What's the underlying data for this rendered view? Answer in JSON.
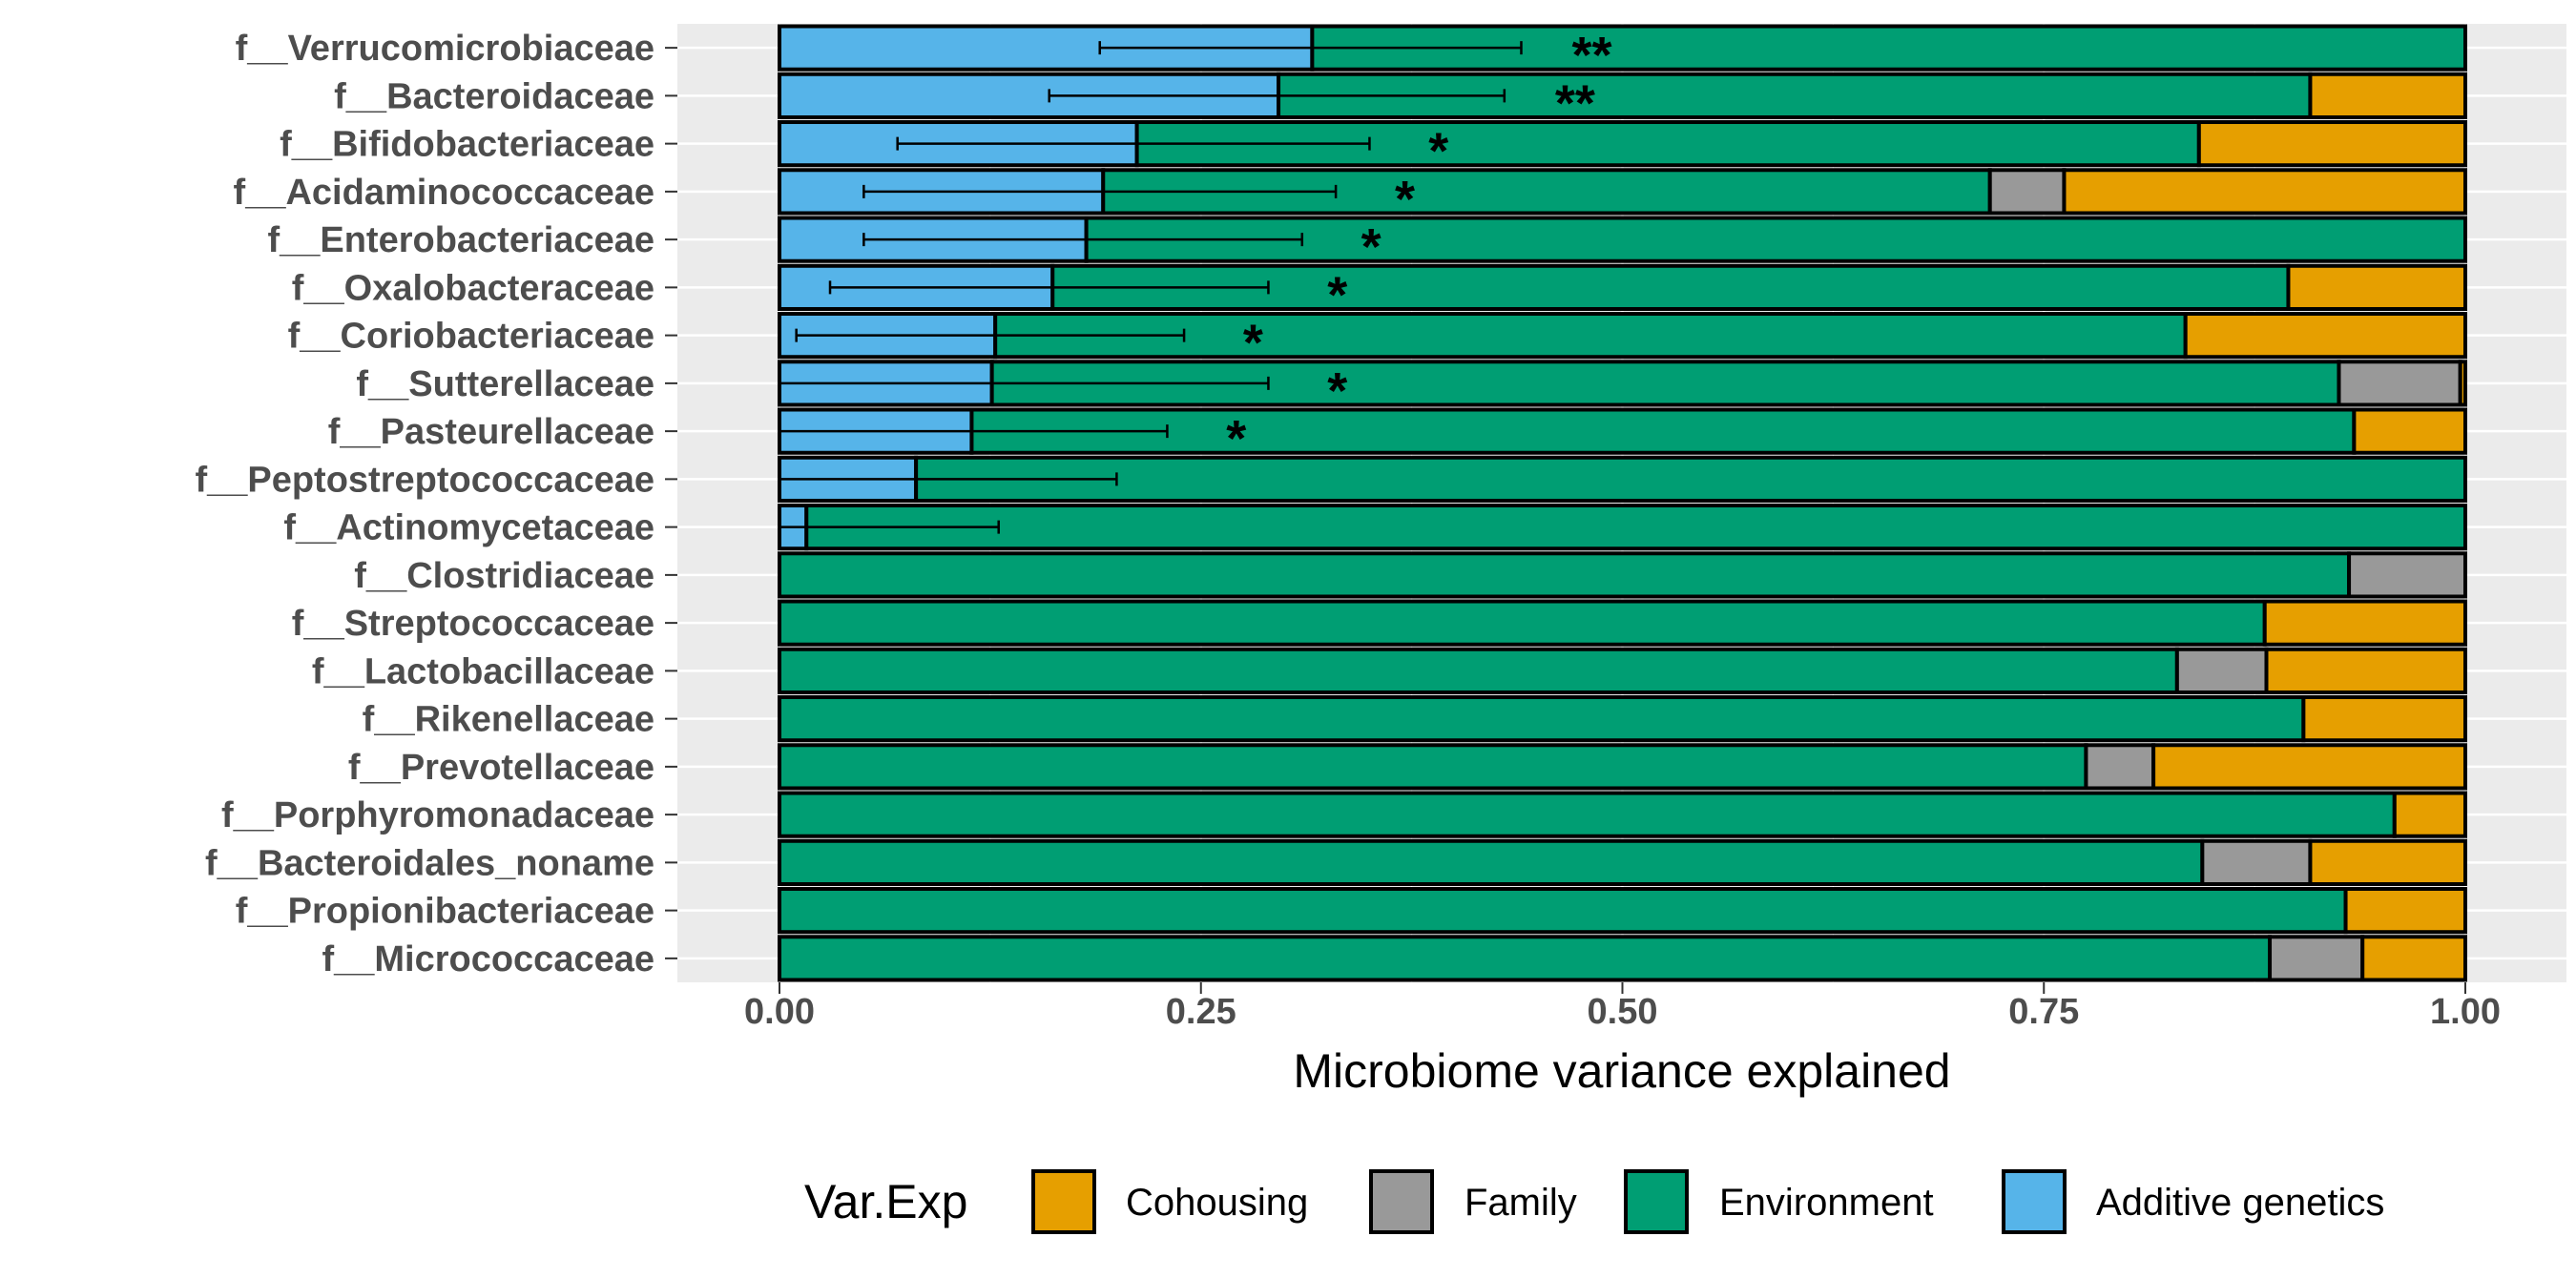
{
  "chart_data": {
    "type": "bar",
    "orientation": "horizontal",
    "stacked": true,
    "xlabel": "Microbiome variance explained",
    "ylabel": "",
    "xlim": [
      -0.105,
      1.045
    ],
    "xticks": [
      "0.00",
      "0.25",
      "0.50",
      "0.75",
      "1.00"
    ],
    "xtick_values": [
      0,
      0.25,
      0.5,
      0.75,
      1.0
    ],
    "grid": true,
    "legend": {
      "title": "Var.Exp",
      "placement": "bottom",
      "entries": [
        "Cohousing",
        "Family",
        "Environment",
        "Additive genetics"
      ]
    },
    "colors": {
      "Additive genetics": "#56B4E9",
      "Environment": "#009E73",
      "Family": "#999999",
      "Cohousing": "#E69F00",
      "panel_background": "#EBEBEB",
      "grid": "#FFFFFF"
    },
    "stack_order": [
      "Additive genetics",
      "Environment",
      "Family",
      "Cohousing"
    ],
    "categories": [
      "f__Verrucomicrobiaceae",
      "f__Bacteroidaceae",
      "f__Bifidobacteriaceae",
      "f__Acidaminococcaceae",
      "f__Enterobacteriaceae",
      "f__Oxalobacteraceae",
      "f__Coriobacteriaceae",
      "f__Sutterellaceae",
      "f__Pasteurellaceae",
      "f__Peptostreptococcaceae",
      "f__Actinomycetaceae",
      "f__Clostridiaceae",
      "f__Streptococcaceae",
      "f__Lactobacillaceae",
      "f__Rikenellaceae",
      "f__Prevotellaceae",
      "f__Porphyromonadaceae",
      "f__Bacteroidales_noname",
      "f__Propionibacteriaceae",
      "f__Micrococcaceae"
    ],
    "series": [
      {
        "name": "Additive genetics",
        "values": [
          0.316,
          0.296,
          0.212,
          0.192,
          0.182,
          0.162,
          0.128,
          0.126,
          0.114,
          0.081,
          0.016,
          0,
          0,
          0,
          0,
          0,
          0,
          0,
          0,
          0
        ]
      },
      {
        "name": "Environment",
        "values": [
          0.684,
          0.612,
          0.63,
          0.526,
          0.818,
          0.733,
          0.706,
          0.799,
          0.82,
          0.919,
          0.984,
          0.931,
          0.881,
          0.829,
          0.904,
          0.775,
          0.958,
          0.844,
          0.929,
          0.884
        ]
      },
      {
        "name": "Family",
        "values": [
          0,
          0,
          0,
          0.044,
          0,
          0,
          0,
          0.072,
          0,
          0,
          0,
          0.069,
          0,
          0.053,
          0,
          0.04,
          0,
          0.064,
          0,
          0.055
        ]
      },
      {
        "name": "Cohousing",
        "values": [
          0,
          0.092,
          0.158,
          0.238,
          0,
          0.105,
          0.166,
          0.003,
          0.066,
          0,
          0,
          0,
          0.119,
          0.118,
          0.096,
          0.185,
          0.042,
          0.092,
          0.071,
          0.061
        ]
      }
    ],
    "error_bars": [
      {
        "category": "f__Verrucomicrobiaceae",
        "low": 0.19,
        "high": 0.44
      },
      {
        "category": "f__Bacteroidaceae",
        "low": 0.16,
        "high": 0.43
      },
      {
        "category": "f__Bifidobacteriaceae",
        "low": 0.07,
        "high": 0.35
      },
      {
        "category": "f__Acidaminococcaceae",
        "low": 0.05,
        "high": 0.33
      },
      {
        "category": "f__Enterobacteriaceae",
        "low": 0.05,
        "high": 0.31
      },
      {
        "category": "f__Oxalobacteraceae",
        "low": 0.03,
        "high": 0.29
      },
      {
        "category": "f__Coriobacteriaceae",
        "low": 0.01,
        "high": 0.24
      },
      {
        "category": "f__Sutterellaceae",
        "low": 0.0,
        "high": 0.29
      },
      {
        "category": "f__Pasteurellaceae",
        "low": 0.0,
        "high": 0.23
      },
      {
        "category": "f__Peptostreptococcaceae",
        "low": 0.0,
        "high": 0.2
      },
      {
        "category": "f__Actinomycetaceae",
        "low": 0.0,
        "high": 0.13
      }
    ],
    "annotations": [
      {
        "category": "f__Verrucomicrobiaceae",
        "text": "**",
        "x": 0.47
      },
      {
        "category": "f__Bacteroidaceae",
        "text": "**",
        "x": 0.46
      },
      {
        "category": "f__Bifidobacteriaceae",
        "text": "*",
        "x": 0.385
      },
      {
        "category": "f__Acidaminococcaceae",
        "text": "*",
        "x": 0.365
      },
      {
        "category": "f__Enterobacteriaceae",
        "text": "*",
        "x": 0.345
      },
      {
        "category": "f__Oxalobacteraceae",
        "text": "*",
        "x": 0.325
      },
      {
        "category": "f__Coriobacteriaceae",
        "text": "*",
        "x": 0.275
      },
      {
        "category": "f__Sutterellaceae",
        "text": "*",
        "x": 0.325
      },
      {
        "category": "f__Pasteurellaceae",
        "text": "*",
        "x": 0.265
      }
    ]
  }
}
